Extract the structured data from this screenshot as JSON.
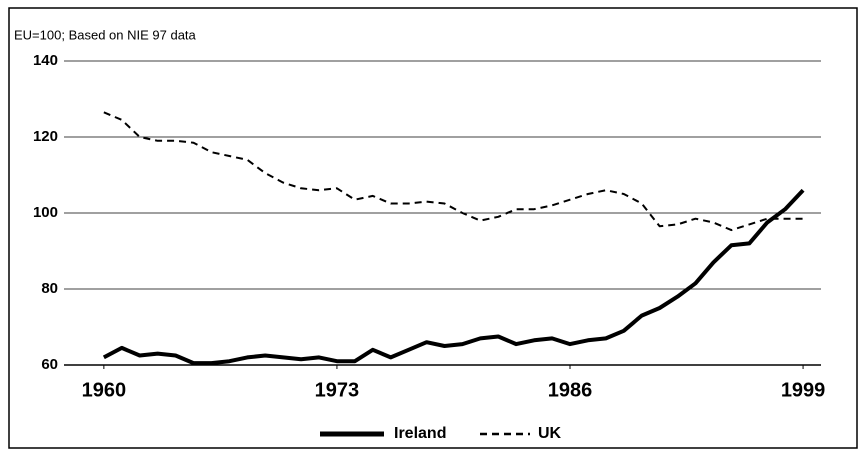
{
  "chart_data": {
    "type": "line",
    "subtitle": "EU=100; Based on NIE 97 data",
    "x": [
      1960,
      1961,
      1962,
      1963,
      1964,
      1965,
      1966,
      1967,
      1968,
      1969,
      1970,
      1971,
      1972,
      1973,
      1974,
      1975,
      1976,
      1977,
      1978,
      1979,
      1980,
      1981,
      1982,
      1983,
      1984,
      1985,
      1986,
      1987,
      1988,
      1989,
      1990,
      1991,
      1992,
      1993,
      1994,
      1995,
      1996,
      1997,
      1998,
      1999
    ],
    "series": [
      {
        "name": "Ireland",
        "color": "#000000",
        "style": "solid",
        "values": [
          62,
          64.5,
          62.5,
          63,
          62.5,
          60.5,
          60.5,
          61,
          62,
          62.5,
          62,
          61.5,
          62,
          61,
          61,
          64,
          62,
          64,
          66,
          65,
          65.5,
          67,
          67.5,
          65.5,
          66.5,
          67,
          65.5,
          66.5,
          67,
          69,
          73,
          75,
          78,
          81.5,
          87,
          91.5,
          92,
          97.5,
          101,
          106
        ]
      },
      {
        "name": "UK",
        "color": "#000000",
        "style": "dashed",
        "values": [
          126.5,
          124.5,
          120,
          119,
          119,
          118.5,
          116,
          115,
          114,
          110.5,
          108,
          106.5,
          106,
          106.5,
          103.5,
          104.5,
          102.5,
          102.5,
          103,
          102.5,
          100,
          98,
          99,
          101,
          101,
          102,
          103.5,
          105,
          106,
          105,
          102.5,
          96.5,
          97,
          98.5,
          97.5,
          95.5,
          97,
          98.5,
          98.5,
          98.5
        ]
      }
    ],
    "xlim": [
      1958,
      2000
    ],
    "xticks": [
      1960,
      1973,
      1986,
      1999
    ],
    "ylim": [
      60,
      140
    ],
    "yticks": [
      60,
      80,
      100,
      120,
      140
    ],
    "grid": true,
    "legend": "bottom"
  }
}
